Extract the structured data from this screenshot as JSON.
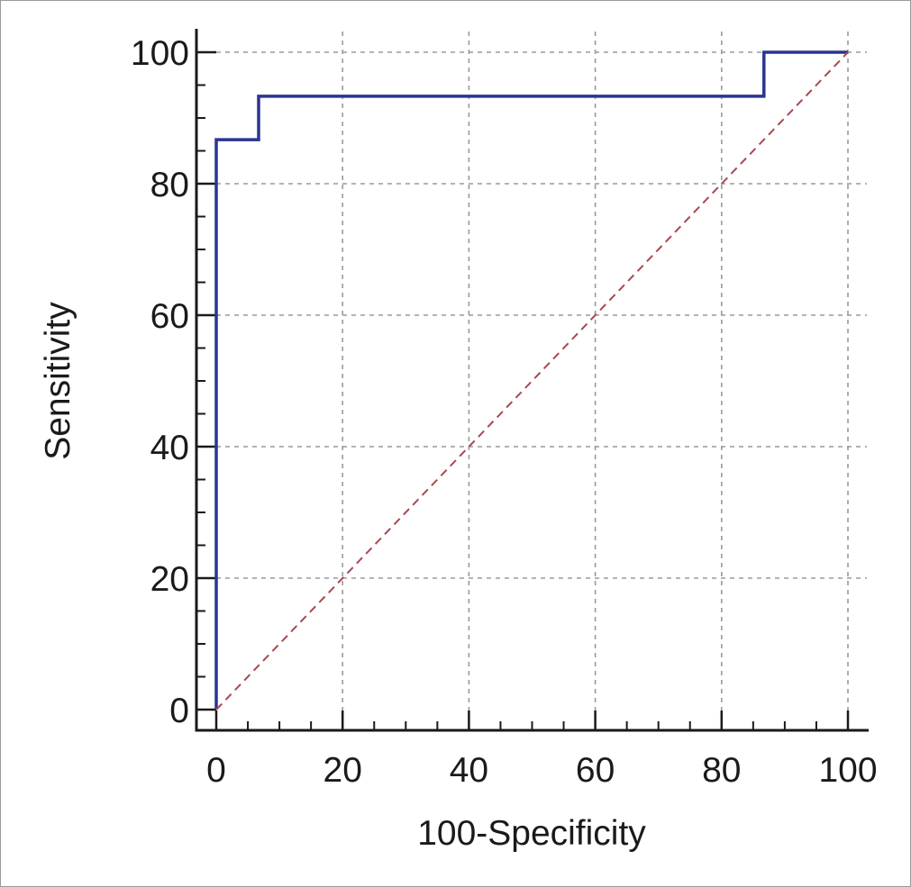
{
  "chart_data": {
    "type": "line",
    "title": "",
    "xlabel": "100-Specificity",
    "ylabel": "Sensitivity",
    "xlim": [
      0,
      100
    ],
    "ylim": [
      0,
      100
    ],
    "xticks": [
      0,
      20,
      40,
      60,
      80,
      100
    ],
    "yticks": [
      0,
      20,
      40,
      60,
      80,
      100
    ],
    "x_minor_step": 5,
    "y_minor_step": 5,
    "grid": true,
    "legend": "none",
    "series": [
      {
        "color": "#2b3590",
        "style": "solid-step",
        "x": [
          0,
          0,
          6.7,
          6.7,
          86.7,
          86.7,
          100
        ],
        "y": [
          0,
          86.7,
          86.7,
          93.3,
          93.3,
          100,
          100
        ]
      },
      {
        "color": "#a8484f",
        "style": "dashed",
        "x": [
          0,
          100
        ],
        "y": [
          0,
          100
        ]
      }
    ]
  }
}
